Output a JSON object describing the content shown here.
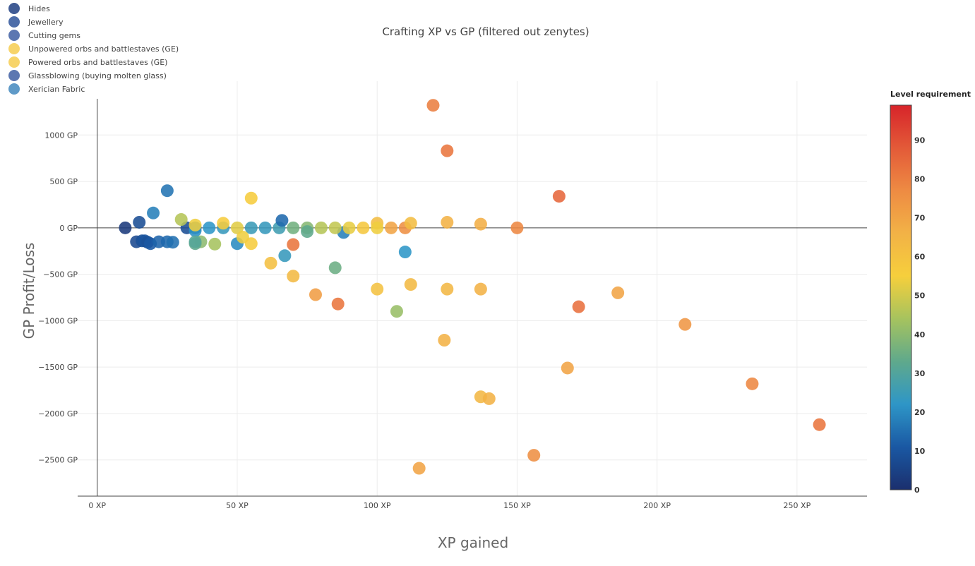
{
  "chart_data": {
    "type": "scatter",
    "title": "Crafting XP vs GP (filtered out zenytes)",
    "xlabel": "XP gained",
    "ylabel": "GP Profit/Loss",
    "xlim": [
      -7,
      275
    ],
    "ylim": [
      -2890,
      1390
    ],
    "x_ticks": [
      0,
      50,
      100,
      150,
      200,
      250
    ],
    "x_tick_labels": [
      "0 XP",
      "50 XP",
      "100 XP",
      "150 XP",
      "200 XP",
      "250 XP"
    ],
    "y_ticks": [
      1000,
      500,
      0,
      -500,
      -1000,
      -1500,
      -2000,
      -2500
    ],
    "y_tick_labels": [
      "1000 GP",
      "500 GP",
      "0 GP",
      "−500 GP",
      "−1000 GP",
      "−1500 GP",
      "−2000 GP",
      "−2500 GP"
    ],
    "grid": true,
    "legend_position": "top-left",
    "colorbar": {
      "title": "Level requirement",
      "min": 0,
      "max": 99,
      "ticks": [
        0,
        10,
        20,
        30,
        40,
        50,
        60,
        70,
        80,
        90
      ],
      "tick_labels": [
        "0",
        "10",
        "20",
        "30",
        "40",
        "50",
        "60",
        "70",
        "80",
        "90"
      ],
      "colorscale": [
        "#1b2f6d",
        "#1a58a3",
        "#2e96c7",
        "#5fa98c",
        "#a6c35e",
        "#f6cf3c",
        "#f2b246",
        "#ee8b43",
        "#e35a38",
        "#d7242a"
      ]
    },
    "series": [
      {
        "name": "Hides",
        "legend_color": "#2c4a8a",
        "points": [
          {
            "x": 10,
            "y": 0,
            "level": 3
          },
          {
            "x": 14,
            "y": -150,
            "level": 7
          },
          {
            "x": 16,
            "y": -140,
            "level": 9
          },
          {
            "x": 17,
            "y": -140,
            "level": 10
          },
          {
            "x": 18,
            "y": -155,
            "level": 9
          },
          {
            "x": 19,
            "y": -170,
            "level": 11
          },
          {
            "x": 22,
            "y": -150,
            "level": 13
          },
          {
            "x": 25,
            "y": -150,
            "level": 14
          },
          {
            "x": 27,
            "y": -155,
            "level": 15
          }
        ]
      },
      {
        "name": "Jewellery",
        "legend_color": "#3a5da0",
        "points": [
          {
            "x": 32,
            "y": 0,
            "level": 8
          },
          {
            "x": 35,
            "y": 0,
            "level": 16
          },
          {
            "x": 40,
            "y": 0,
            "level": 22
          },
          {
            "x": 45,
            "y": 0,
            "level": 24
          },
          {
            "x": 55,
            "y": 0,
            "level": 25
          },
          {
            "x": 60,
            "y": 0,
            "level": 24
          },
          {
            "x": 65,
            "y": 0,
            "level": 26
          },
          {
            "x": 35,
            "y": -30,
            "level": 21
          }
        ]
      },
      {
        "name": "Cutting gems",
        "legend_color": "#4a68a8",
        "points": [
          {
            "x": 15,
            "y": 60,
            "level": 8
          },
          {
            "x": 20,
            "y": 160,
            "level": 18
          },
          {
            "x": 66,
            "y": 80,
            "level": 14
          },
          {
            "x": 50,
            "y": -170,
            "level": 20
          },
          {
            "x": 67,
            "y": -300,
            "level": 24
          },
          {
            "x": 88,
            "y": -50,
            "level": 18
          },
          {
            "x": 110,
            "y": -260,
            "level": 22
          }
        ]
      },
      {
        "name": "Unpowered orbs and battlestaves (GE)",
        "legend_color": "#f6cf5a",
        "points": [
          {
            "x": 30,
            "y": 90,
            "level": 46
          },
          {
            "x": 35,
            "y": 30,
            "level": 54
          },
          {
            "x": 37,
            "y": -150,
            "level": 40
          },
          {
            "x": 42,
            "y": -175,
            "level": 44
          },
          {
            "x": 45,
            "y": 50,
            "level": 56
          },
          {
            "x": 50,
            "y": 0,
            "level": 52
          },
          {
            "x": 52,
            "y": -100,
            "level": 54
          },
          {
            "x": 55,
            "y": 320,
            "level": 56
          },
          {
            "x": 55,
            "y": -170,
            "level": 56
          },
          {
            "x": 62,
            "y": -380,
            "level": 61
          },
          {
            "x": 70,
            "y": -520,
            "level": 63
          },
          {
            "x": 78,
            "y": -720,
            "level": 72
          }
        ]
      },
      {
        "name": "Powered orbs and battlestaves (GE)",
        "legend_color": "#f6cf5a",
        "points": [
          {
            "x": 80,
            "y": 0,
            "level": 46
          },
          {
            "x": 85,
            "y": 0,
            "level": 48
          },
          {
            "x": 90,
            "y": 0,
            "level": 53
          },
          {
            "x": 95,
            "y": 0,
            "level": 58
          },
          {
            "x": 100,
            "y": 50,
            "level": 62
          },
          {
            "x": 100,
            "y": 0,
            "level": 54
          },
          {
            "x": 105,
            "y": 0,
            "level": 70
          },
          {
            "x": 110,
            "y": 0,
            "level": 76
          },
          {
            "x": 112,
            "y": 50,
            "level": 62
          },
          {
            "x": 125,
            "y": 60,
            "level": 66
          },
          {
            "x": 137,
            "y": 40,
            "level": 67
          },
          {
            "x": 150,
            "y": 0,
            "level": 78
          },
          {
            "x": 100,
            "y": -660,
            "level": 60
          },
          {
            "x": 112,
            "y": -610,
            "level": 63
          },
          {
            "x": 125,
            "y": -660,
            "level": 64
          },
          {
            "x": 137,
            "y": -660,
            "level": 66
          },
          {
            "x": 124,
            "y": -1210,
            "level": 66
          },
          {
            "x": 137,
            "y": -1820,
            "level": 64
          },
          {
            "x": 140,
            "y": -1840,
            "level": 66
          },
          {
            "x": 115,
            "y": -2590,
            "level": 70
          },
          {
            "x": 156,
            "y": -2450,
            "level": 76
          },
          {
            "x": 168,
            "y": -1510,
            "level": 70
          },
          {
            "x": 186,
            "y": -700,
            "level": 70
          },
          {
            "x": 210,
            "y": -1040,
            "level": 74
          },
          {
            "x": 234,
            "y": -1680,
            "level": 78
          },
          {
            "x": 258,
            "y": -2120,
            "level": 82
          },
          {
            "x": 172,
            "y": -850,
            "level": 83
          },
          {
            "x": 165,
            "y": 340,
            "level": 85
          },
          {
            "x": 120,
            "y": 1320,
            "level": 80
          },
          {
            "x": 125,
            "y": 830,
            "level": 82
          },
          {
            "x": 86,
            "y": -820,
            "level": 82
          },
          {
            "x": 70,
            "y": -180,
            "level": 82
          }
        ]
      },
      {
        "name": "Glassblowing (buying molten glass)",
        "legend_color": "#4a68a8",
        "points": [
          {
            "x": 35,
            "y": -170,
            "level": 33
          },
          {
            "x": 35,
            "y": -150,
            "level": 31
          },
          {
            "x": 70,
            "y": 0,
            "level": 36
          },
          {
            "x": 75,
            "y": 0,
            "level": 39
          },
          {
            "x": 75,
            "y": -40,
            "level": 33
          },
          {
            "x": 85,
            "y": -430,
            "level": 35
          },
          {
            "x": 107,
            "y": -900,
            "level": 42
          }
        ]
      },
      {
        "name": "Xerician Fabric",
        "legend_color": "#4e8fc2",
        "points": [
          {
            "x": 25,
            "y": 400,
            "level": 16
          }
        ]
      }
    ]
  }
}
